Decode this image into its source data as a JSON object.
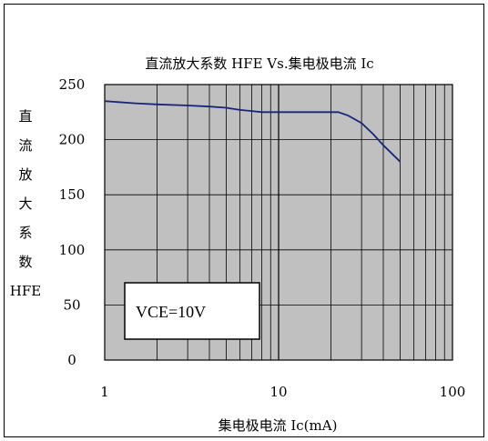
{
  "chart_data": {
    "type": "line",
    "title": "直流放大系数 HFE Vs.集电极电流 Ic",
    "xlabel": "集电极电流 Ic(mA)",
    "ylabel": [
      "直",
      "流",
      "放",
      "大",
      "系",
      "数",
      "HFE"
    ],
    "x_scale": "log",
    "xlim": [
      1,
      100
    ],
    "ylim": [
      0,
      250
    ],
    "x_ticks": [
      "1",
      "10",
      "100"
    ],
    "y_ticks": [
      "250",
      "200",
      "150",
      "100",
      "50",
      "0"
    ],
    "grid": true,
    "colors": {
      "plot_bg": "#c0c0c0",
      "line": "#1a237e",
      "grid": "#000000"
    },
    "annotation": "VCE=10V",
    "series": [
      {
        "x": [
          1,
          1.5,
          2,
          3,
          4,
          5,
          6,
          7,
          8,
          10,
          15,
          20,
          22,
          25,
          30,
          35,
          40,
          50
        ],
        "y": [
          235,
          233,
          232,
          231,
          230,
          229,
          227,
          226,
          225,
          225,
          225,
          225,
          225,
          222,
          215,
          205,
          195,
          180
        ]
      }
    ]
  }
}
